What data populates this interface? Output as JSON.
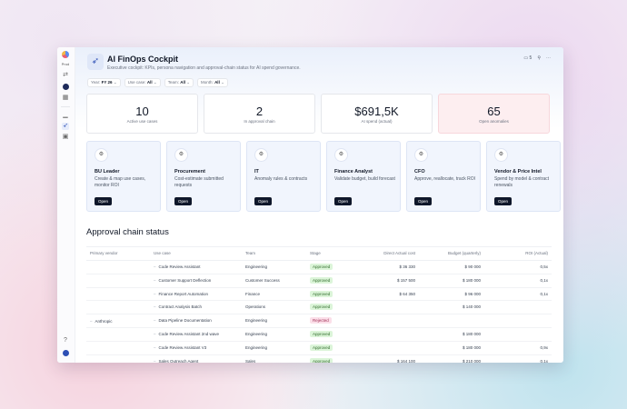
{
  "app": {
    "title": "AI FinOps Cockpit",
    "subtitle": "Executive cockpit: KPIs, persona navigation and approval-chain status for AI spend governance.",
    "rail_label": "Prod",
    "comment_count": "5"
  },
  "filters": [
    {
      "label": "Year:",
      "value": "FY 26"
    },
    {
      "label": "Use case:",
      "value": "All"
    },
    {
      "label": "Team:",
      "value": "All"
    },
    {
      "label": "Month:",
      "value": "All"
    }
  ],
  "kpis": [
    {
      "value": "10",
      "label": "Active use cases"
    },
    {
      "value": "2",
      "label": "In approval chain"
    },
    {
      "value": "$691,5K",
      "label": "AI spend (actual)"
    },
    {
      "value": "65",
      "label": "Open anomalies"
    }
  ],
  "personas": [
    {
      "name": "BU Leader",
      "desc": "Create & map use cases, monitor ROI",
      "button": "Open"
    },
    {
      "name": "Procurement",
      "desc": "Cost-estimate submitted requests",
      "button": "Open"
    },
    {
      "name": "IT",
      "desc": "Anomaly rules & contracts",
      "button": "Open"
    },
    {
      "name": "Finance Analyst",
      "desc": "Validate budget, build forecast",
      "button": "Open"
    },
    {
      "name": "CFO",
      "desc": "Approve, reallocate, track ROI",
      "button": "Open"
    },
    {
      "name": "Vendor & Price Intel",
      "desc": "Spend by model & contract renewals",
      "button": "Open"
    }
  ],
  "section": {
    "title": "Approval chain status"
  },
  "table": {
    "headers": [
      "Primary vendor",
      "Use case",
      "Team",
      "Stage",
      "Direct Actual cost",
      "Budget (quarterly)",
      "ROI (Actual)"
    ],
    "vendor": "Anthropic",
    "rows": [
      {
        "use_case": "Code Review Assistant",
        "team": "Engineering",
        "stage": "Approved",
        "cost": "$ 36 330",
        "budget": "$ 90 000",
        "roi": "0,5x"
      },
      {
        "use_case": "Customer Support Deflection",
        "team": "Customer Success",
        "stage": "Approved",
        "cost": "$ 157 500",
        "budget": "$ 180 000",
        "roi": "0,1x"
      },
      {
        "use_case": "Finance Report Automation",
        "team": "Finance",
        "stage": "Approved",
        "cost": "$ 64 350",
        "budget": "$ 96 000",
        "roi": "0,1x"
      },
      {
        "use_case": "Contract Analysis Batch",
        "team": "Operations",
        "stage": "Approved",
        "cost": "",
        "budget": "$ 140 000",
        "roi": ""
      },
      {
        "use_case": "Data Pipeline Documentation",
        "team": "Engineering",
        "stage": "Rejected",
        "cost": "",
        "budget": "",
        "roi": ""
      },
      {
        "use_case": "Code Review Assistant 2nd wave",
        "team": "Engineering",
        "stage": "Approved",
        "cost": "",
        "budget": "$ 180 000",
        "roi": ""
      },
      {
        "use_case": "Code Review Assistant V3",
        "team": "Engineering",
        "stage": "Approved",
        "cost": "",
        "budget": "$ 180 000",
        "roi": "0,9x"
      },
      {
        "use_case": "Sales Outreach Agent",
        "team": "Sales",
        "stage": "Approved",
        "cost": "$ 164 100",
        "budget": "$ 210 000",
        "roi": "0,1x"
      }
    ]
  },
  "icons": {
    "app": "rocket-icon",
    "persona": "settings-cog-icon",
    "comment": "comment-icon",
    "pin": "pin-icon",
    "more": "more-horizontal-icon"
  },
  "colors": {
    "approved": "#dcf5d9",
    "rejected": "#fbdfe9",
    "alert_kpi": "#fdeef0",
    "persona_bg": "#f1f5fd"
  }
}
